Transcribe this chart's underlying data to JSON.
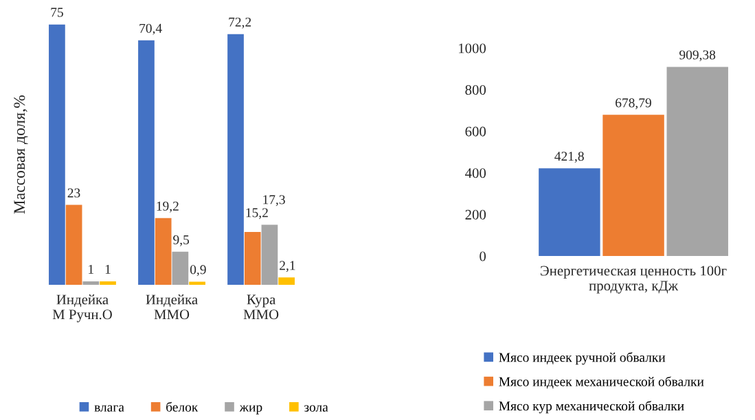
{
  "chart_data": [
    {
      "type": "bar",
      "ylabel": "Массовая доля,%",
      "categories": [
        "Индейка\nМ Ручн.О",
        "Индейка\nММО",
        "Кура\nММО"
      ],
      "series": [
        {
          "name": "влага",
          "color": "#4472c4",
          "values": [
            75,
            70.4,
            72.2
          ],
          "value_labels": [
            "75",
            "70,4",
            "72,2"
          ]
        },
        {
          "name": "белок",
          "color": "#ed7d31",
          "values": [
            23,
            19.2,
            15.2
          ],
          "value_labels": [
            "23",
            "19,2",
            "15,2"
          ]
        },
        {
          "name": "жир",
          "color": "#a5a5a5",
          "values": [
            1,
            9.5,
            17.3
          ],
          "value_labels": [
            "1",
            "9,5",
            "17,3"
          ]
        },
        {
          "name": "зола",
          "color": "#ffc000",
          "values": [
            1,
            0.9,
            2.1
          ],
          "value_labels": [
            "1",
            "0,9",
            "2,1"
          ]
        }
      ],
      "legend": "bottom",
      "tick_labels": "x"
    },
    {
      "type": "bar",
      "xlabel": "Энергетическая ценность 100г\nпродукта, кДж",
      "categories": [
        null
      ],
      "series": [
        {
          "name": "Мясо индеек ручной обвалки",
          "color": "#4472c4",
          "values": [
            421.8
          ],
          "value_labels": [
            "421,8"
          ]
        },
        {
          "name": "Мясо индеек механической обвалки",
          "color": "#ed7d31",
          "values": [
            678.79
          ],
          "value_labels": [
            "678,79"
          ]
        },
        {
          "name": "Мясо кур механической обвалки",
          "color": "#a5a5a5",
          "values": [
            909.38
          ],
          "value_labels": [
            "909,38"
          ]
        }
      ],
      "ylim": [
        0,
        1000
      ],
      "yticks": [
        0,
        200,
        400,
        600,
        800,
        1000
      ],
      "legend": "bottom",
      "tick_labels": "y"
    }
  ]
}
